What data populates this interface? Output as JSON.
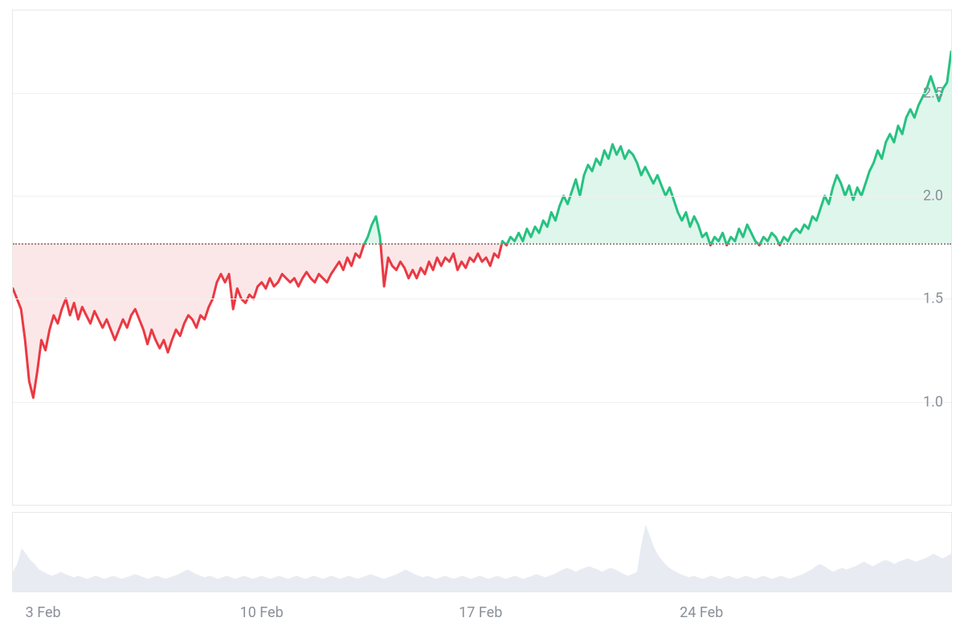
{
  "chart": {
    "type": "line-baseline",
    "background_color": "#ffffff",
    "border_color": "#e8e8e8",
    "grid_color": "#f0f0f0",
    "baseline_value": 1.77,
    "baseline_color": "#9a8a8a",
    "above_line_color": "#26c281",
    "above_fill_color": "rgba(38,194,129,0.15)",
    "below_line_color": "#ea3943",
    "below_fill_color": "rgba(234,57,67,0.12)",
    "line_width": 3,
    "y_axis": {
      "min": 0.5,
      "max": 2.9,
      "ticks": [
        1.0,
        1.5,
        2.0,
        2.5
      ],
      "label_color": "#8a8f98",
      "label_fontsize": 18
    },
    "x_axis": {
      "labels": [
        "3 Feb",
        "10 Feb",
        "17 Feb",
        "24 Feb"
      ],
      "positions": [
        0.018,
        0.247,
        0.48,
        0.715
      ],
      "label_color": "#8a8f98",
      "label_fontsize": 18
    },
    "series": [
      1.55,
      1.5,
      1.45,
      1.3,
      1.1,
      1.02,
      1.15,
      1.3,
      1.25,
      1.35,
      1.42,
      1.38,
      1.45,
      1.5,
      1.42,
      1.48,
      1.4,
      1.46,
      1.42,
      1.38,
      1.44,
      1.4,
      1.36,
      1.4,
      1.35,
      1.3,
      1.35,
      1.4,
      1.36,
      1.42,
      1.45,
      1.4,
      1.35,
      1.28,
      1.35,
      1.3,
      1.26,
      1.3,
      1.24,
      1.3,
      1.35,
      1.32,
      1.38,
      1.42,
      1.4,
      1.36,
      1.42,
      1.4,
      1.46,
      1.5,
      1.58,
      1.62,
      1.58,
      1.62,
      1.45,
      1.55,
      1.5,
      1.48,
      1.52,
      1.5,
      1.56,
      1.58,
      1.55,
      1.6,
      1.56,
      1.58,
      1.62,
      1.6,
      1.58,
      1.6,
      1.56,
      1.6,
      1.63,
      1.6,
      1.58,
      1.62,
      1.6,
      1.58,
      1.62,
      1.65,
      1.68,
      1.64,
      1.7,
      1.66,
      1.72,
      1.7,
      1.76,
      1.8,
      1.86,
      1.9,
      1.8,
      1.56,
      1.7,
      1.66,
      1.64,
      1.68,
      1.65,
      1.6,
      1.64,
      1.6,
      1.65,
      1.62,
      1.68,
      1.64,
      1.7,
      1.66,
      1.7,
      1.68,
      1.72,
      1.64,
      1.68,
      1.65,
      1.7,
      1.68,
      1.72,
      1.68,
      1.7,
      1.66,
      1.72,
      1.7,
      1.78,
      1.76,
      1.8,
      1.78,
      1.82,
      1.78,
      1.84,
      1.8,
      1.85,
      1.82,
      1.88,
      1.85,
      1.92,
      1.88,
      1.95,
      2.0,
      1.96,
      2.02,
      2.08,
      2.0,
      2.1,
      2.15,
      2.12,
      2.18,
      2.15,
      2.22,
      2.18,
      2.25,
      2.2,
      2.24,
      2.18,
      2.22,
      2.2,
      2.16,
      2.1,
      2.14,
      2.1,
      2.06,
      2.1,
      2.05,
      2.0,
      2.04,
      1.98,
      1.92,
      1.88,
      1.92,
      1.85,
      1.9,
      1.86,
      1.8,
      1.82,
      1.76,
      1.8,
      1.78,
      1.82,
      1.76,
      1.8,
      1.78,
      1.84,
      1.8,
      1.86,
      1.82,
      1.78,
      1.76,
      1.8,
      1.78,
      1.82,
      1.8,
      1.76,
      1.8,
      1.78,
      1.82,
      1.84,
      1.82,
      1.86,
      1.84,
      1.9,
      1.88,
      1.94,
      2.0,
      1.96,
      2.04,
      2.1,
      2.06,
      2.0,
      2.05,
      1.98,
      2.04,
      2.0,
      2.06,
      2.12,
      2.16,
      2.22,
      2.18,
      2.26,
      2.3,
      2.26,
      2.34,
      2.3,
      2.38,
      2.42,
      2.38,
      2.44,
      2.48,
      2.52,
      2.58,
      2.52,
      2.46,
      2.52,
      2.55,
      2.7
    ]
  },
  "volume": {
    "type": "area",
    "fill_color": "#e8ecf2",
    "max": 100,
    "series": [
      25,
      35,
      55,
      48,
      40,
      35,
      28,
      25,
      22,
      20,
      22,
      25,
      22,
      20,
      18,
      20,
      18,
      16,
      18,
      20,
      18,
      16,
      18,
      20,
      18,
      16,
      18,
      20,
      22,
      20,
      18,
      16,
      18,
      20,
      18,
      16,
      18,
      20,
      22,
      25,
      28,
      25,
      22,
      20,
      18,
      20,
      18,
      16,
      18,
      20,
      18,
      16,
      18,
      20,
      18,
      16,
      18,
      20,
      18,
      16,
      18,
      20,
      18,
      16,
      18,
      20,
      18,
      16,
      18,
      20,
      18,
      16,
      18,
      20,
      18,
      16,
      18,
      20,
      18,
      16,
      18,
      20,
      22,
      20,
      18,
      16,
      18,
      20,
      22,
      25,
      28,
      25,
      22,
      20,
      18,
      20,
      18,
      16,
      18,
      20,
      18,
      16,
      18,
      20,
      18,
      16,
      18,
      20,
      18,
      16,
      18,
      20,
      18,
      16,
      18,
      20,
      18,
      16,
      18,
      20,
      22,
      20,
      18,
      20,
      22,
      25,
      28,
      30,
      28,
      25,
      28,
      30,
      32,
      30,
      28,
      25,
      28,
      30,
      28,
      25,
      22,
      20,
      22,
      25,
      60,
      85,
      70,
      55,
      45,
      38,
      32,
      28,
      25,
      22,
      20,
      18,
      20,
      18,
      16,
      18,
      20,
      18,
      16,
      18,
      20,
      18,
      16,
      18,
      20,
      18,
      16,
      18,
      20,
      18,
      16,
      18,
      20,
      18,
      16,
      18,
      20,
      22,
      25,
      28,
      32,
      35,
      32,
      28,
      25,
      28,
      30,
      28,
      30,
      32,
      35,
      38,
      35,
      32,
      35,
      38,
      40,
      38,
      35,
      38,
      40,
      42,
      40,
      38,
      40,
      42,
      45,
      48,
      45,
      42,
      45,
      48
    ]
  }
}
